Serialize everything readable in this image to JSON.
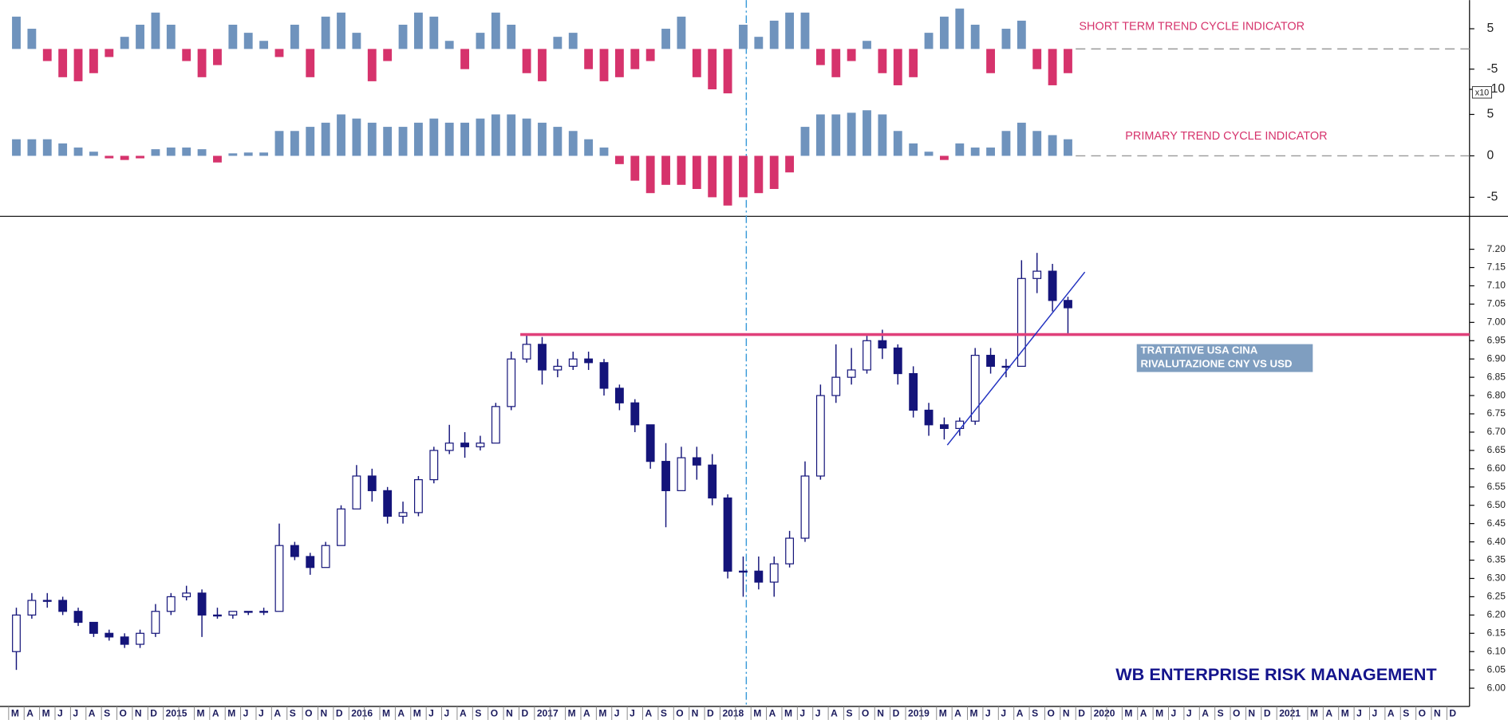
{
  "chart_data": [
    {
      "type": "bar",
      "annotation": "SHORT TERM TREND CYCLE INDICATOR",
      "positive_color": "#6f93bd",
      "negative_color": "#d6336c",
      "ylim": [
        -11.7,
        12.1
      ],
      "yticks": [
        5,
        -5,
        -10
      ],
      "values": [
        8,
        5,
        -3,
        -7,
        -8,
        -6,
        -2,
        3,
        6,
        9,
        6,
        -3,
        -7,
        -4,
        6,
        4,
        2,
        -2,
        6,
        -7,
        8,
        9,
        4,
        -8,
        -3,
        6,
        9,
        8,
        2,
        -5,
        4,
        9,
        6,
        -6,
        -8,
        3,
        4,
        -5,
        -8,
        -7,
        -5,
        -3,
        5,
        8,
        -7,
        -10,
        -11,
        6,
        3,
        7,
        9,
        9,
        -4,
        -7,
        -3,
        2,
        -6,
        -9,
        -7,
        4,
        8,
        10,
        6,
        -6,
        5,
        7,
        -5,
        -9,
        -6,
        null,
        null,
        null,
        null,
        null,
        null,
        null,
        null,
        null,
        null,
        null,
        null,
        null,
        null,
        null,
        null,
        null,
        null,
        null,
        null,
        null,
        null,
        null,
        null,
        null
      ]
    },
    {
      "type": "bar",
      "annotation": "PRIMARY TREND CYCLE INDICATOR",
      "multiplier": "x10",
      "positive_color": "#6f93bd",
      "negative_color": "#d6336c",
      "ylim": [
        -7.3,
        7.2
      ],
      "yticks": [
        5,
        0,
        -5
      ],
      "values": [
        2,
        2,
        2,
        1.5,
        1,
        0.5,
        -0.3,
        -0.5,
        -0.3,
        0.8,
        1,
        1,
        0.8,
        -0.8,
        0.3,
        0.4,
        0.4,
        3,
        3,
        3.5,
        4,
        5,
        4.5,
        4,
        3.5,
        3.5,
        4,
        4.5,
        4,
        4,
        4.5,
        5,
        5,
        4.5,
        4,
        3.5,
        3,
        2,
        1,
        -1,
        -3,
        -4.5,
        -3.5,
        -3.5,
        -4,
        -5,
        -6,
        -5,
        -4.5,
        -4,
        -2,
        3.5,
        5,
        5,
        5.2,
        5.5,
        5,
        3,
        1.5,
        0.5,
        -0.5,
        1.5,
        1,
        1,
        3,
        4,
        3,
        2.5,
        2,
        null,
        null,
        null,
        null,
        null,
        null,
        null,
        null,
        null,
        null,
        null,
        null,
        null,
        null,
        null,
        null,
        null,
        null,
        null,
        null,
        null,
        null,
        null,
        null,
        null
      ]
    },
    {
      "type": "candlestick",
      "color": "#14147a",
      "annotation_lines": [
        "TRATTATIVE USA CINA",
        "RIVALUTAZIONE CNY VS USD"
      ],
      "watermark": "WB ENTERPRISE RISK MANAGEMENT",
      "ylim": [
        5.95,
        7.29
      ],
      "yticks": [
        {
          "value": 6,
          "label": "6.00"
        },
        6.05,
        {
          "value": 6.1,
          "label": "6.10"
        },
        6.15,
        {
          "value": 6.2,
          "label": "6.20"
        },
        6.25,
        {
          "value": 6.3,
          "label": "6.30"
        },
        6.35,
        {
          "value": 6.4,
          "label": "6.40"
        },
        6.45,
        {
          "value": 6.5,
          "label": "6.50"
        },
        6.55,
        {
          "value": 6.6,
          "label": "6.60"
        },
        6.65,
        {
          "value": 6.7,
          "label": "6.70"
        },
        6.75,
        {
          "value": 6.8,
          "label": "6.80"
        },
        6.85,
        {
          "value": 6.9,
          "label": "6.90"
        },
        6.95,
        {
          "value": 7,
          "label": "7.00"
        },
        7.05,
        {
          "value": 7.1,
          "label": "7.10"
        },
        7.15,
        {
          "value": 7.2,
          "label": "7.20"
        }
      ],
      "categories": [
        "M",
        "A",
        "M",
        "J",
        "J",
        "A",
        "S",
        "O",
        "N",
        "D",
        "2015",
        null,
        "M",
        "A",
        "M",
        "J",
        "J",
        "A",
        "S",
        "O",
        "N",
        "D",
        "2016",
        null,
        "M",
        "A",
        "M",
        "J",
        "J",
        "A",
        "S",
        "O",
        "N",
        "D",
        "2017",
        null,
        "M",
        "A",
        "M",
        "J",
        "J",
        "A",
        "S",
        "O",
        "N",
        "D",
        "2018",
        null,
        "M",
        "A",
        "M",
        "J",
        "J",
        "A",
        "S",
        "O",
        "N",
        "D",
        "2019",
        null,
        "M",
        "A",
        "M",
        "J",
        "J",
        "A",
        "S",
        "O",
        "N",
        "D",
        "2020",
        null,
        "M",
        "A",
        "M",
        "J",
        "J",
        "A",
        "S",
        "O",
        "N",
        "D",
        "2021",
        null,
        "M",
        "A",
        "M",
        "J",
        "J",
        "A",
        "S",
        "O",
        "N",
        "D"
      ],
      "open": [
        6.1,
        6.2,
        6.24,
        6.24,
        6.21,
        6.18,
        6.15,
        6.14,
        6.12,
        6.15,
        6.21,
        6.25,
        6.26,
        6.2,
        6.2,
        6.21,
        6.21,
        6.21,
        6.39,
        6.36,
        6.33,
        6.39,
        6.49,
        6.58,
        6.54,
        6.47,
        6.48,
        6.57,
        6.65,
        6.67,
        6.66,
        6.67,
        6.77,
        6.9,
        6.94,
        6.87,
        6.88,
        6.9,
        6.89,
        6.82,
        6.78,
        6.72,
        6.62,
        6.54,
        6.63,
        6.61,
        6.52,
        6.32,
        6.32,
        6.29,
        6.34,
        6.41,
        6.58,
        6.8,
        6.85,
        6.87,
        6.95,
        6.93,
        6.86,
        6.76,
        6.72,
        6.71,
        6.73,
        6.91,
        6.88,
        6.88,
        7.12,
        7.14,
        7.06,
        null,
        null,
        null,
        null,
        null,
        null,
        null,
        null,
        null,
        null,
        null,
        null,
        null,
        null,
        null,
        null,
        null,
        null,
        null,
        null,
        null,
        null,
        null,
        null,
        null
      ],
      "high": [
        6.22,
        6.26,
        6.26,
        6.25,
        6.22,
        6.18,
        6.16,
        6.15,
        6.16,
        6.23,
        6.26,
        6.28,
        6.27,
        6.22,
        6.21,
        6.21,
        6.22,
        6.45,
        6.4,
        6.37,
        6.4,
        6.5,
        6.61,
        6.6,
        6.55,
        6.51,
        6.58,
        6.66,
        6.72,
        6.7,
        6.69,
        6.78,
        6.92,
        6.97,
        6.96,
        6.9,
        6.92,
        6.92,
        6.9,
        6.83,
        6.79,
        6.72,
        6.67,
        6.66,
        6.66,
        6.64,
        6.53,
        6.36,
        6.36,
        6.36,
        6.43,
        6.62,
        6.83,
        6.94,
        6.93,
        6.97,
        6.98,
        6.94,
        6.88,
        6.78,
        6.74,
        6.74,
        6.93,
        6.93,
        6.9,
        7.17,
        7.19,
        7.16,
        7.07,
        null,
        null,
        null,
        null,
        null,
        null,
        null,
        null,
        null,
        null,
        null,
        null,
        null,
        null,
        null,
        null,
        null,
        null,
        null,
        null,
        null,
        null,
        null,
        null,
        null
      ],
      "low": [
        6.05,
        6.19,
        6.22,
        6.2,
        6.17,
        6.14,
        6.13,
        6.11,
        6.11,
        6.14,
        6.2,
        6.24,
        6.14,
        6.19,
        6.19,
        6.2,
        6.2,
        6.21,
        6.35,
        6.31,
        6.33,
        6.39,
        6.49,
        6.51,
        6.45,
        6.45,
        6.47,
        6.56,
        6.64,
        6.63,
        6.65,
        6.67,
        6.76,
        6.89,
        6.83,
        6.85,
        6.87,
        6.87,
        6.8,
        6.76,
        6.7,
        6.6,
        6.44,
        6.54,
        6.57,
        6.5,
        6.3,
        6.25,
        6.27,
        6.25,
        6.33,
        6.4,
        6.57,
        6.78,
        6.83,
        6.86,
        6.9,
        6.83,
        6.74,
        6.69,
        6.68,
        6.69,
        6.72,
        6.86,
        6.85,
        6.88,
        7.08,
        7.03,
        6.97,
        null,
        null,
        null,
        null,
        null,
        null,
        null,
        null,
        null,
        null,
        null,
        null,
        null,
        null,
        null,
        null,
        null,
        null,
        null,
        null,
        null,
        null,
        null,
        null,
        null
      ],
      "close": [
        6.2,
        6.24,
        6.24,
        6.21,
        6.18,
        6.15,
        6.14,
        6.12,
        6.15,
        6.21,
        6.25,
        6.26,
        6.2,
        6.2,
        6.21,
        6.21,
        6.21,
        6.39,
        6.36,
        6.33,
        6.39,
        6.49,
        6.58,
        6.54,
        6.47,
        6.48,
        6.57,
        6.65,
        6.67,
        6.66,
        6.67,
        6.77,
        6.9,
        6.94,
        6.87,
        6.88,
        6.9,
        6.89,
        6.82,
        6.78,
        6.72,
        6.62,
        6.54,
        6.63,
        6.61,
        6.52,
        6.32,
        6.32,
        6.29,
        6.34,
        6.41,
        6.58,
        6.8,
        6.85,
        6.87,
        6.95,
        6.93,
        6.86,
        6.76,
        6.72,
        6.71,
        6.73,
        6.91,
        6.88,
        6.88,
        7.12,
        7.14,
        7.06,
        7.04,
        null,
        null,
        null,
        null,
        null,
        null,
        null,
        null,
        null,
        null,
        null,
        null,
        null,
        null,
        null,
        null,
        null,
        null,
        null,
        null,
        null,
        null,
        null,
        null,
        null
      ]
    }
  ]
}
